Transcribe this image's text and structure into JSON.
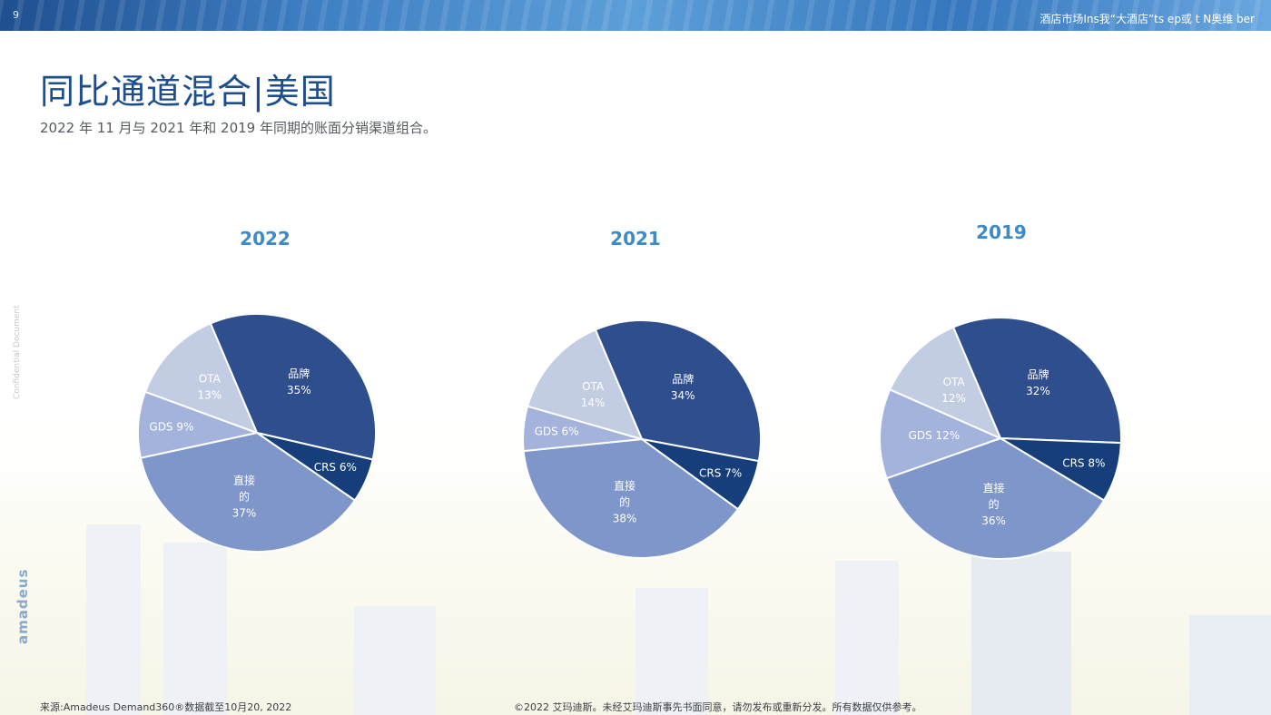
{
  "header": {
    "page_number": "9",
    "top_text": "酒店市场Ins我“大酒店”ts ep或 t N奥维 ber"
  },
  "title": "同比通道混合|美国",
  "subtitle": "2022 年 11 月与 2021 年和 2019 年同期的账面分销渠道组合。",
  "side_note": "Confidential Document",
  "brand": "amadeus",
  "colors": {
    "brand": "#2e4e8e",
    "crs": "#153e7a",
    "direct": "#7f96cb",
    "gds": "#a4b3dc",
    "ota": "#c2cde4"
  },
  "chart_data": [
    {
      "type": "pie",
      "title": "2022",
      "slices": [
        {
          "label": "品牌",
          "value": 35,
          "value_label": "35%",
          "color": "#2e4e8e"
        },
        {
          "label": "CRS",
          "value": 6,
          "value_label": "6%",
          "color": "#153e7a"
        },
        {
          "label": "直接的",
          "value": 37,
          "value_label": "37%",
          "color": "#7f96cb"
        },
        {
          "label": "GDS",
          "value": 9,
          "value_label": "9%",
          "color": "#a4b3dc"
        },
        {
          "label": "OTA",
          "value": 13,
          "value_label": "13%",
          "color": "#c2cde4"
        }
      ]
    },
    {
      "type": "pie",
      "title": "2021",
      "slices": [
        {
          "label": "品牌",
          "value": 34,
          "value_label": "34%",
          "color": "#2e4e8e"
        },
        {
          "label": "CRS",
          "value": 7,
          "value_label": "7%",
          "color": "#153e7a"
        },
        {
          "label": "直接的",
          "value": 38,
          "value_label": "38%",
          "color": "#7f96cb"
        },
        {
          "label": "GDS",
          "value": 6,
          "value_label": "6%",
          "color": "#a4b3dc"
        },
        {
          "label": "OTA",
          "value": 14,
          "value_label": "14%",
          "color": "#c2cde4"
        }
      ]
    },
    {
      "type": "pie",
      "title": "2019",
      "slices": [
        {
          "label": "品牌",
          "value": 32,
          "value_label": "32%",
          "color": "#2e4e8e"
        },
        {
          "label": "CRS",
          "value": 8,
          "value_label": "8%",
          "color": "#153e7a"
        },
        {
          "label": "直接的",
          "value": 36,
          "value_label": "36%",
          "color": "#7f96cb"
        },
        {
          "label": "GDS",
          "value": 12,
          "value_label": "12%",
          "color": "#a4b3dc"
        },
        {
          "label": "OTA",
          "value": 12,
          "value_label": "12%",
          "color": "#c2cde4"
        }
      ]
    }
  ],
  "footer": {
    "source": "来源:Amadeus Demand360®数据截至10月20, 2022",
    "copyright": "©2022 艾玛迪斯。未经艾玛迪斯事先书面同意，请勿发布或重新分发。所有数据仅供参考。"
  }
}
